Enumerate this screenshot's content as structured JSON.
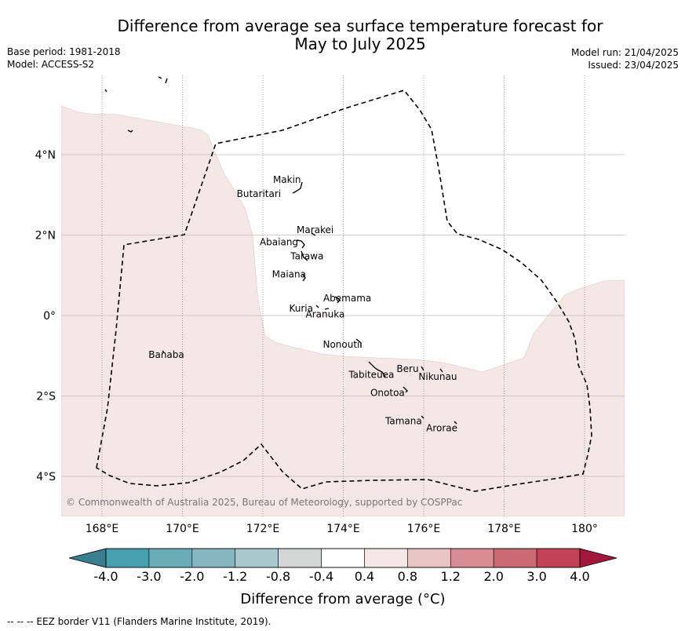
{
  "title": "Difference from average sea surface temperature forecast for May to July 2025",
  "title_line1": "Difference from average sea surface temperature forecast for",
  "title_line2": "May to July 2025",
  "meta_left": {
    "base_period": "Base period: 1981-2018",
    "model": "Model: ACCESS-S2"
  },
  "meta_right": {
    "model_run": "Model run: 21/04/2025",
    "issued": "Issued: 23/04/2025"
  },
  "map": {
    "lon_range": [
      167.0,
      181.0
    ],
    "lat_range": [
      -5.0,
      6.0
    ],
    "lat_labels": [
      {
        "lat": 4,
        "text": "4°N"
      },
      {
        "lat": 2,
        "text": "2°N"
      },
      {
        "lat": 0,
        "text": "0°"
      },
      {
        "lat": -2,
        "text": "2°S"
      },
      {
        "lat": -4,
        "text": "4°S"
      }
    ],
    "lon_labels": [
      {
        "lon": 168,
        "text": "168°E"
      },
      {
        "lon": 170,
        "text": "170°E"
      },
      {
        "lon": 172,
        "text": "172°E"
      },
      {
        "lon": 174,
        "text": "174°E"
      },
      {
        "lon": 176,
        "text": "176°E"
      },
      {
        "lon": 178,
        "text": "178°E"
      },
      {
        "lon": 180,
        "text": "180°"
      }
    ],
    "places": [
      {
        "name": "Makin",
        "lon": 172.6,
        "lat": 3.3
      },
      {
        "name": "Butaritari",
        "lon": 171.9,
        "lat": 2.95
      },
      {
        "name": "Marakei",
        "lon": 173.3,
        "lat": 2.05
      },
      {
        "name": "Abaiang",
        "lon": 172.4,
        "lat": 1.75
      },
      {
        "name": "Tarawa",
        "lon": 173.1,
        "lat": 1.4
      },
      {
        "name": "Maiana",
        "lon": 172.65,
        "lat": 0.95
      },
      {
        "name": "Abemama",
        "lon": 174.1,
        "lat": 0.35
      },
      {
        "name": "Kuria",
        "lon": 172.95,
        "lat": 0.1
      },
      {
        "name": "Aranuka",
        "lon": 173.55,
        "lat": -0.05
      },
      {
        "name": "Nonouti",
        "lon": 173.95,
        "lat": -0.8
      },
      {
        "name": "Banaba",
        "lon": 169.6,
        "lat": -1.05
      },
      {
        "name": "Beru",
        "lon": 175.6,
        "lat": -1.4
      },
      {
        "name": "Nikunau",
        "lon": 176.35,
        "lat": -1.6
      },
      {
        "name": "Tabiteuea",
        "lon": 174.7,
        "lat": -1.55
      },
      {
        "name": "Onotoa",
        "lon": 175.1,
        "lat": -2.0
      },
      {
        "name": "Tamana",
        "lon": 175.5,
        "lat": -2.7
      },
      {
        "name": "Arorae",
        "lon": 176.45,
        "lat": -2.88
      }
    ],
    "anomaly_shading": {
      "range_c": [
        0.4,
        0.8
      ],
      "color": "#f4e8e7"
    },
    "copyright": "© Commonwealth of Australia 2025, Bureau of Meteorology, supported by COSPPac"
  },
  "colorbar": {
    "levels": [
      "-4.0",
      "-3.0",
      "-2.0",
      "-1.2",
      "-0.8",
      "-0.4",
      "0.4",
      "0.8",
      "1.2",
      "2.0",
      "3.0",
      "4.0"
    ],
    "colors": [
      "#46a0b0",
      "#6aacb8",
      "#86b6c0",
      "#a7c8cc",
      "#d4d6d6",
      "#ffffff",
      "#f4e8e7",
      "#e8c5c3",
      "#d98c94",
      "#cc6a73",
      "#c24356"
    ],
    "under_color": "#3a7f8d",
    "over_color": "#a2183a",
    "label": "Difference from average (°C)"
  },
  "footer": "--  --  -- EEZ border V11 (Flanders Marine Institute, 2019)."
}
